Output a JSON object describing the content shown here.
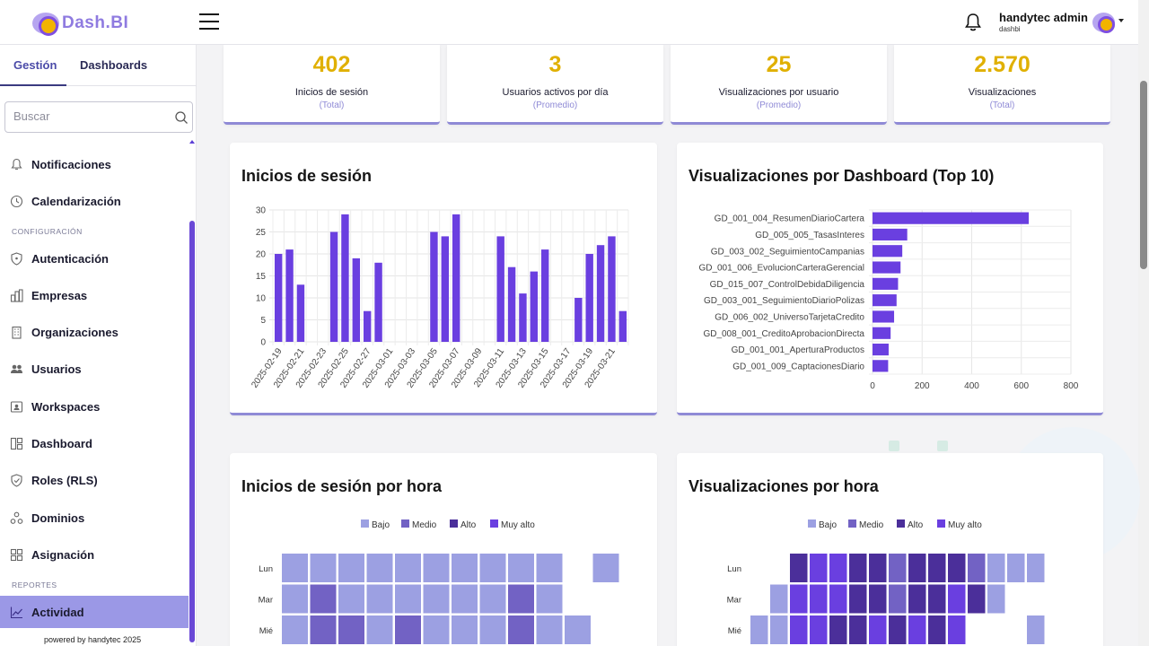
{
  "app": {
    "brand": "Dash.BI"
  },
  "user": {
    "name": "handytec admin",
    "subtitle": "dashbi"
  },
  "sidebar": {
    "tabs": [
      {
        "label": "Gestión"
      },
      {
        "label": "Dashboards"
      }
    ],
    "search_placeholder": "Buscar",
    "items": [
      {
        "label": "Notificaciones",
        "icon": "bell-icon"
      },
      {
        "label": "Calendarización",
        "icon": "clock-icon"
      },
      {
        "label": "Autenticación",
        "icon": "shield-icon"
      },
      {
        "label": "Empresas",
        "icon": "buildings-icon"
      },
      {
        "label": "Organizaciones",
        "icon": "building-icon"
      },
      {
        "label": "Usuarios",
        "icon": "users-icon"
      },
      {
        "label": "Workspaces",
        "icon": "workspace-icon"
      },
      {
        "label": "Dashboard",
        "icon": "dashboard-icon"
      },
      {
        "label": "Roles (RLS)",
        "icon": "shield-check-icon"
      },
      {
        "label": "Dominios",
        "icon": "domains-icon"
      },
      {
        "label": "Asignación",
        "icon": "grid-icon"
      },
      {
        "label": "Actividad",
        "icon": "chart-line-icon"
      }
    ],
    "sections": {
      "config": "CONFIGURACIÓN",
      "reports": "REPORTES"
    },
    "footer": "powered by handytec 2025"
  },
  "kpis": [
    {
      "value": "402",
      "label": "Inicios de sesión",
      "sub": "(Total)"
    },
    {
      "value": "3",
      "label": "Usuarios activos por día",
      "sub": "(Promedio)"
    },
    {
      "value": "25",
      "label": "Visualizaciones por usuario",
      "sub": "(Promedio)"
    },
    {
      "value": "2.570",
      "label": "Visualizaciones",
      "sub": "(Total)"
    }
  ],
  "cards": {
    "logins": {
      "title": "Inicios de sesión"
    },
    "views": {
      "title": "Visualizaciones por Dashboard (Top 10)"
    },
    "logins_hour": {
      "title": "Inicios de sesión por hora"
    },
    "views_hour": {
      "title": "Visualizaciones por hora"
    }
  },
  "colors": {
    "accent": "#6a3fe0",
    "kpi": "#e0b000",
    "bajo": "#9ca0e2",
    "medio": "#7262c4",
    "alto": "#4b2f9a",
    "muy_alto": "#6a3fe0"
  },
  "chart_data": [
    {
      "type": "bar",
      "title": "Inicios de sesión",
      "categories": [
        "2025-02-19",
        "2025-02-20",
        "2025-02-21",
        "2025-02-22",
        "2025-02-23",
        "2025-02-24",
        "2025-02-25",
        "2025-02-26",
        "2025-02-27",
        "2025-02-28",
        "2025-03-01",
        "2025-03-02",
        "2025-03-03",
        "2025-03-04",
        "2025-03-05",
        "2025-03-06",
        "2025-03-07",
        "2025-03-08",
        "2025-03-09",
        "2025-03-10",
        "2025-03-11",
        "2025-03-12",
        "2025-03-13",
        "2025-03-14",
        "2025-03-15",
        "2025-03-16",
        "2025-03-17",
        "2025-03-18",
        "2025-03-19",
        "2025-03-20",
        "2025-03-21",
        "2025-03-22"
      ],
      "x_tick_labels": [
        "2025-02-19",
        "2025-02-21",
        "2025-02-23",
        "2025-02-25",
        "2025-02-27",
        "2025-03-01",
        "2025-03-03",
        "2025-03-05",
        "2025-03-07",
        "2025-03-09",
        "2025-03-11",
        "2025-03-13",
        "2025-03-15",
        "2025-03-17",
        "2025-03-19",
        "2025-03-21"
      ],
      "values": [
        20,
        21,
        13,
        0,
        0,
        25,
        29,
        19,
        7,
        18,
        0,
        0,
        0,
        0,
        25,
        24,
        29,
        0,
        0,
        0,
        24,
        17,
        11,
        16,
        21,
        0,
        0,
        10,
        20,
        22,
        24,
        7
      ],
      "ylim": [
        0,
        30
      ],
      "yticks": [
        0,
        5,
        10,
        15,
        20,
        25,
        30
      ],
      "grid": true
    },
    {
      "type": "bar",
      "orientation": "horizontal",
      "title": "Visualizaciones por Dashboard (Top 10)",
      "categories": [
        "GD_001_004_ResumenDiarioCartera",
        "GD_005_005_TasasInteres",
        "GD_003_002_SeguimientoCampanias",
        "GD_001_006_EvolucionCarteraGerencial",
        "GD_015_007_ControlDebidaDiligencia",
        "GD_003_001_SeguimientoDiarioPolizas",
        "GD_006_002_UniversoTarjetaCredito",
        "GD_008_001_CreditoAprobacionDirecta",
        "GD_001_001_AperturaProductos",
        "GD_001_009_CaptacionesDiario"
      ],
      "values": [
        630,
        140,
        120,
        113,
        103,
        97,
        87,
        73,
        65,
        63
      ],
      "xlim": [
        0,
        800
      ],
      "xticks": [
        0,
        200,
        400,
        600,
        800
      ],
      "grid": true
    },
    {
      "type": "heatmap",
      "title": "Inicios de sesión por hora",
      "legend": [
        "Bajo",
        "Medio",
        "Alto",
        "Muy alto"
      ],
      "rows": [
        "Lun",
        "Mar",
        "Mié"
      ],
      "values": [
        [
          1,
          1,
          1,
          1,
          1,
          1,
          1,
          1,
          1,
          1,
          0,
          1
        ],
        [
          1,
          2,
          1,
          1,
          1,
          1,
          1,
          1,
          2,
          1,
          0,
          0
        ],
        [
          1,
          2,
          2,
          1,
          2,
          1,
          1,
          1,
          2,
          1,
          1,
          0
        ]
      ]
    },
    {
      "type": "heatmap",
      "title": "Visualizaciones por hora",
      "legend": [
        "Bajo",
        "Medio",
        "Alto",
        "Muy alto"
      ],
      "rows": [
        "Lun",
        "Mar",
        "Mié"
      ],
      "values": [
        [
          0,
          0,
          3,
          4,
          4,
          3,
          3,
          2,
          3,
          3,
          3,
          2,
          1,
          1,
          1
        ],
        [
          0,
          1,
          4,
          4,
          4,
          3,
          3,
          2,
          3,
          3,
          4,
          3,
          1,
          0,
          0
        ],
        [
          1,
          1,
          4,
          4,
          3,
          3,
          4,
          3,
          4,
          3,
          4,
          0,
          0,
          0,
          1
        ]
      ]
    }
  ]
}
